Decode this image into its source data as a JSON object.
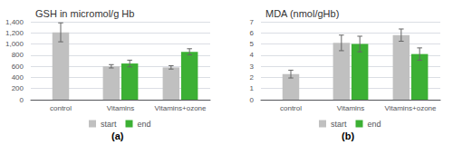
{
  "chart_data": [
    {
      "type": "bar",
      "title": "GSH in micromol/g Hb",
      "categories": [
        "control",
        "Vitamins",
        "Vitamins+ozone"
      ],
      "series": [
        {
          "name": "start",
          "color": "#c0c0c0",
          "values": [
            1210,
            600,
            580
          ],
          "errors": [
            170,
            30,
            30
          ]
        },
        {
          "name": "end",
          "color": "#3cb034",
          "values": [
            null,
            650,
            860
          ],
          "errors": [
            null,
            60,
            55
          ]
        }
      ],
      "ylim": [
        0,
        1400
      ],
      "yticks": [
        0,
        200,
        400,
        600,
        800,
        1000,
        1200,
        1400
      ],
      "grid": true,
      "legend": "bottom",
      "annotations": [
        "(a)"
      ]
    },
    {
      "type": "bar",
      "title": "MDA (nmol/gHb)",
      "categories": [
        "control",
        "Vitamins",
        "Vitamins+ozone"
      ],
      "series": [
        {
          "name": "start",
          "color": "#c0c0c0",
          "values": [
            2.3,
            5.1,
            5.8
          ],
          "errors": [
            0.35,
            0.7,
            0.55
          ]
        },
        {
          "name": "end",
          "color": "#3cb034",
          "values": [
            null,
            5.0,
            4.1
          ],
          "errors": [
            null,
            0.7,
            0.55
          ]
        }
      ],
      "ylim": [
        0,
        7
      ],
      "yticks": [
        0,
        1,
        2,
        3,
        4,
        5,
        6,
        7
      ],
      "grid": true,
      "legend": "bottom",
      "annotations": [
        "(b)"
      ]
    }
  ]
}
